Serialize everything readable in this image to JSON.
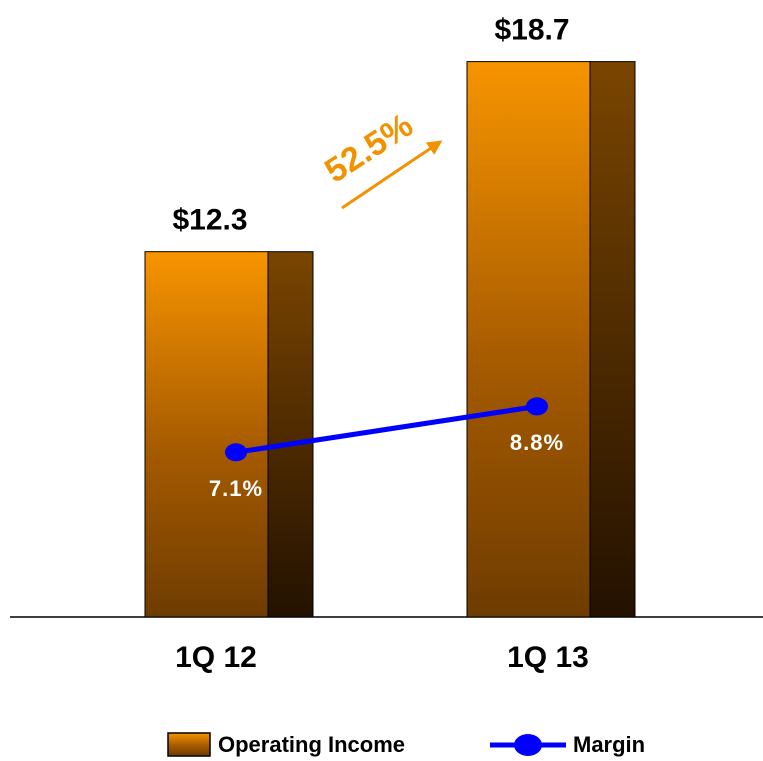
{
  "chart_data": {
    "type": "bar",
    "categories": [
      "1Q 12",
      "1Q 13"
    ],
    "series": [
      {
        "name": "Operating Income",
        "type": "bar",
        "color": "#f39200",
        "values": [
          12.3,
          18.7
        ],
        "value_labels": [
          "$12.3",
          "$18.7"
        ]
      },
      {
        "name": "Margin",
        "type": "line",
        "axis": "y2",
        "color": "#0000ff",
        "values": [
          7.1,
          8.8
        ],
        "value_labels": [
          "7.1%",
          "8.8%"
        ]
      }
    ],
    "ylim": [
      0,
      20
    ],
    "y2lim": [
      1,
      23
    ],
    "annotations": [
      {
        "text": "52.5%",
        "color": "#f39200"
      }
    ]
  }
}
